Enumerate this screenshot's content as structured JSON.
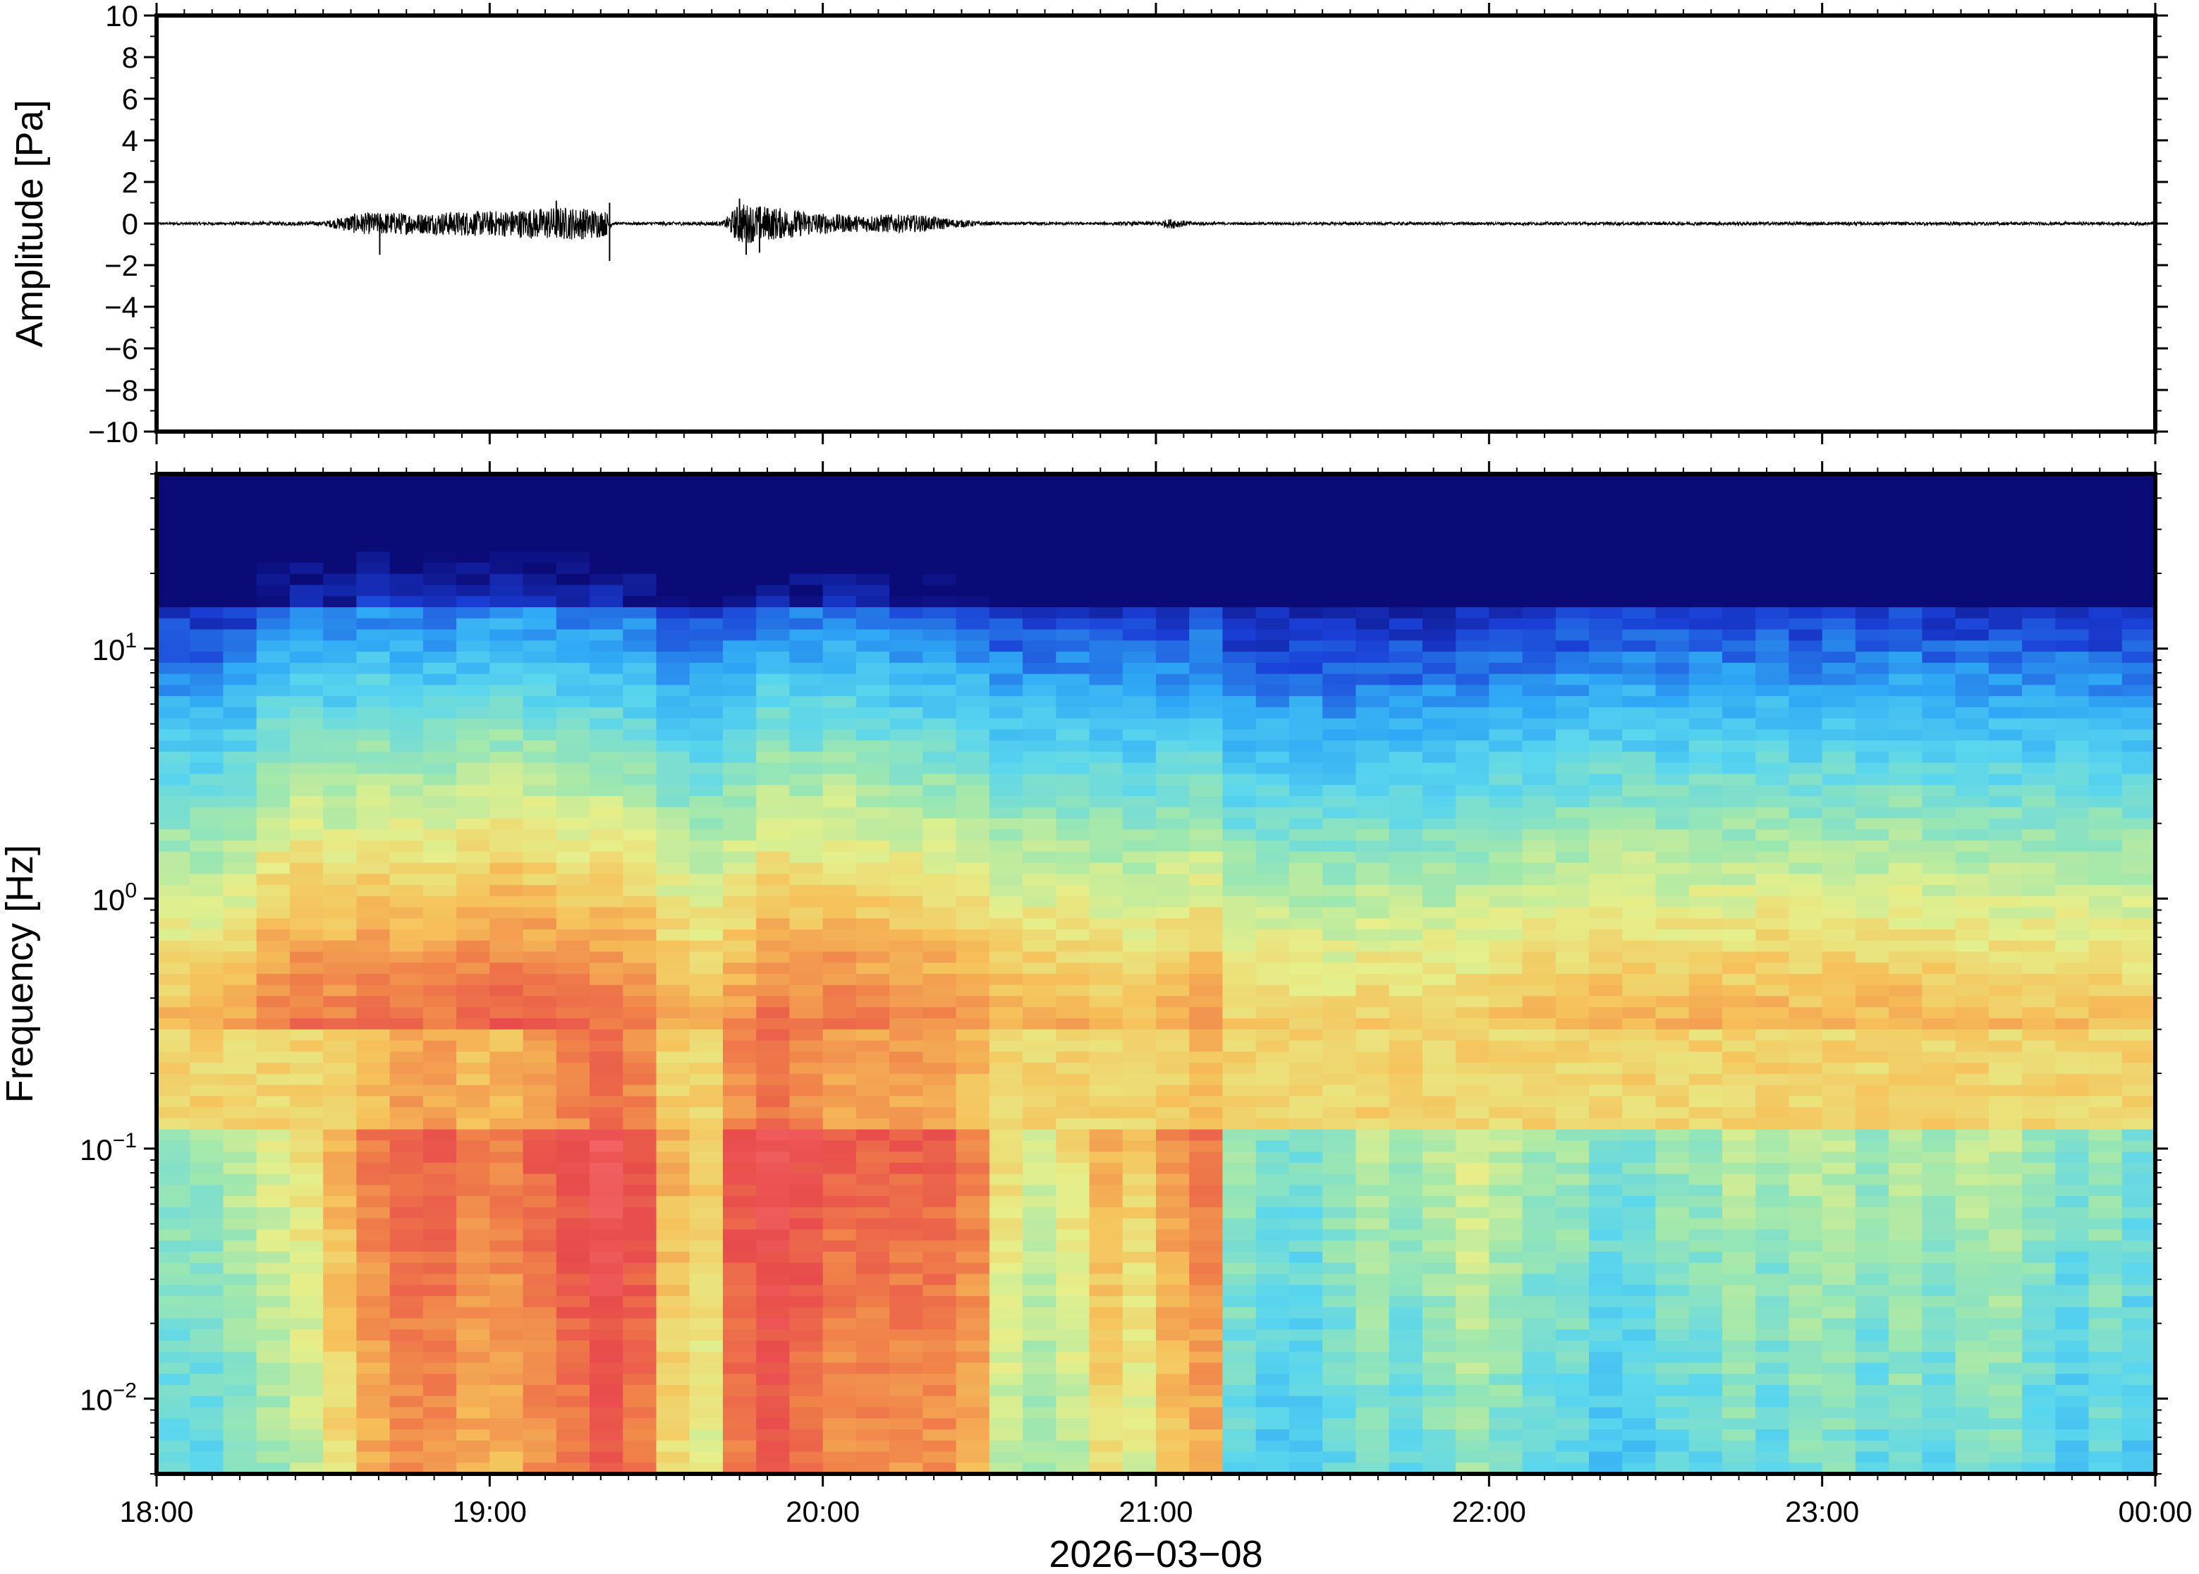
{
  "chart_data": [
    {
      "type": "line",
      "title": "",
      "ylabel": "Amplitude [Pa]",
      "xlabel": "",
      "ylim": [
        -10,
        10
      ],
      "yticks": [
        "10",
        "8",
        "6",
        "4",
        "2",
        "0",
        "−2",
        "−4",
        "−6",
        "−8",
        "−10"
      ],
      "yvalues": [
        10,
        8,
        6,
        4,
        2,
        0,
        -2,
        -4,
        -6,
        -8,
        -10
      ],
      "xlim": [
        "18:00",
        "00:00"
      ],
      "grid": false,
      "series": [
        {
          "color": "#000000",
          "envelope_hours": [
            0.0,
            0.5,
            0.55,
            0.6,
            0.7,
            0.8,
            0.9,
            1.0,
            1.1,
            1.2,
            1.3,
            1.35,
            1.37,
            1.5,
            1.7,
            1.75,
            1.8,
            1.9,
            2.0,
            2.1,
            2.2,
            2.3,
            2.4,
            2.5,
            2.8,
            3.0,
            3.05,
            3.1,
            3.2,
            4.0,
            5.0,
            6.0
          ],
          "envelope_pa": [
            0.05,
            0.1,
            0.3,
            0.5,
            0.55,
            0.5,
            0.6,
            0.6,
            0.7,
            0.8,
            0.75,
            0.6,
            0.05,
            0.08,
            0.1,
            1.0,
            0.9,
            0.7,
            0.5,
            0.4,
            0.45,
            0.4,
            0.2,
            0.08,
            0.06,
            0.1,
            0.25,
            0.1,
            0.06,
            0.07,
            0.08,
            0.07
          ],
          "spikes": [
            {
              "hour": 0.67,
              "value": -1.5
            },
            {
              "hour": 1.2,
              "value": 1.1
            },
            {
              "hour": 1.36,
              "value": -1.8
            },
            {
              "hour": 1.36,
              "value": 1.0
            },
            {
              "hour": 1.75,
              "value": 1.2
            },
            {
              "hour": 1.77,
              "value": -1.5
            },
            {
              "hour": 1.81,
              "value": -1.4
            }
          ]
        }
      ]
    },
    {
      "type": "heatmap",
      "title": "",
      "ylabel": "Frequency [Hz]",
      "xlabel": "2026−03−08",
      "yscale": "log",
      "ylim": [
        0.005,
        50
      ],
      "yticks": [
        {
          "value": 10,
          "base": "10",
          "exp": "1"
        },
        {
          "value": 1,
          "base": "10",
          "exp": "0"
        },
        {
          "value": 0.1,
          "base": "10",
          "exp": "−1"
        },
        {
          "value": 0.01,
          "base": "10",
          "exp": "−2"
        }
      ],
      "xticks": [
        "18:00",
        "19:00",
        "20:00",
        "21:00",
        "22:00",
        "23:00",
        "00:00"
      ],
      "xtick_hours": [
        0,
        1,
        2,
        3,
        4,
        5,
        6
      ],
      "colormap": [
        "#0b0b78",
        "#1a3fd6",
        "#2fa8f5",
        "#5ad6ee",
        "#9de7b0",
        "#e6ef8a",
        "#f6c15a",
        "#f0824a",
        "#e84b4b",
        "#f66a6a"
      ],
      "columns_hours": [
        0.0,
        0.1,
        0.2,
        0.3,
        0.4,
        0.5,
        0.6,
        0.7,
        0.8,
        0.9,
        1.0,
        1.1,
        1.2,
        1.3,
        1.4,
        1.5,
        1.6,
        1.7,
        1.8,
        1.9,
        2.0,
        2.1,
        2.2,
        2.3,
        2.4,
        2.5,
        2.6,
        2.7,
        2.8,
        2.9,
        3.0,
        3.1,
        3.2,
        3.3,
        3.4,
        3.5,
        3.6,
        3.7,
        3.8,
        3.9,
        4.0,
        4.1,
        4.2,
        4.3,
        4.4,
        4.5,
        4.6,
        4.7,
        4.8,
        4.9,
        5.0,
        5.1,
        5.2,
        5.3,
        5.4,
        5.5,
        5.6,
        5.7,
        5.8,
        5.9
      ],
      "energy_low_freq": [
        0.45,
        0.45,
        0.5,
        0.55,
        0.6,
        0.7,
        0.8,
        0.85,
        0.85,
        0.8,
        0.8,
        0.85,
        0.9,
        0.95,
        0.9,
        0.7,
        0.65,
        0.9,
        0.95,
        0.9,
        0.85,
        0.85,
        0.85,
        0.85,
        0.8,
        0.6,
        0.55,
        0.6,
        0.7,
        0.65,
        0.75,
        0.8,
        0.45,
        0.4,
        0.4,
        0.45,
        0.5,
        0.45,
        0.5,
        0.55,
        0.5,
        0.45,
        0.45,
        0.4,
        0.4,
        0.45,
        0.45,
        0.5,
        0.45,
        0.5,
        0.5,
        0.45,
        0.5,
        0.45,
        0.5,
        0.5,
        0.45,
        0.4,
        0.45,
        0.4
      ],
      "energy_high_freq": [
        0.3,
        0.3,
        0.35,
        0.55,
        0.6,
        0.55,
        0.65,
        0.6,
        0.6,
        0.65,
        0.7,
        0.65,
        0.6,
        0.6,
        0.55,
        0.4,
        0.35,
        0.45,
        0.6,
        0.55,
        0.6,
        0.55,
        0.5,
        0.5,
        0.45,
        0.35,
        0.35,
        0.35,
        0.3,
        0.3,
        0.35,
        0.4,
        0.2,
        0.2,
        0.2,
        0.18,
        0.22,
        0.2,
        0.2,
        0.22,
        0.25,
        0.3,
        0.32,
        0.35,
        0.35,
        0.32,
        0.35,
        0.33,
        0.35,
        0.32,
        0.34,
        0.33,
        0.35,
        0.32,
        0.3,
        0.3,
        0.28,
        0.28,
        0.27,
        0.26
      ],
      "microseism_band_hz": [
        0.12,
        0.3
      ]
    }
  ]
}
